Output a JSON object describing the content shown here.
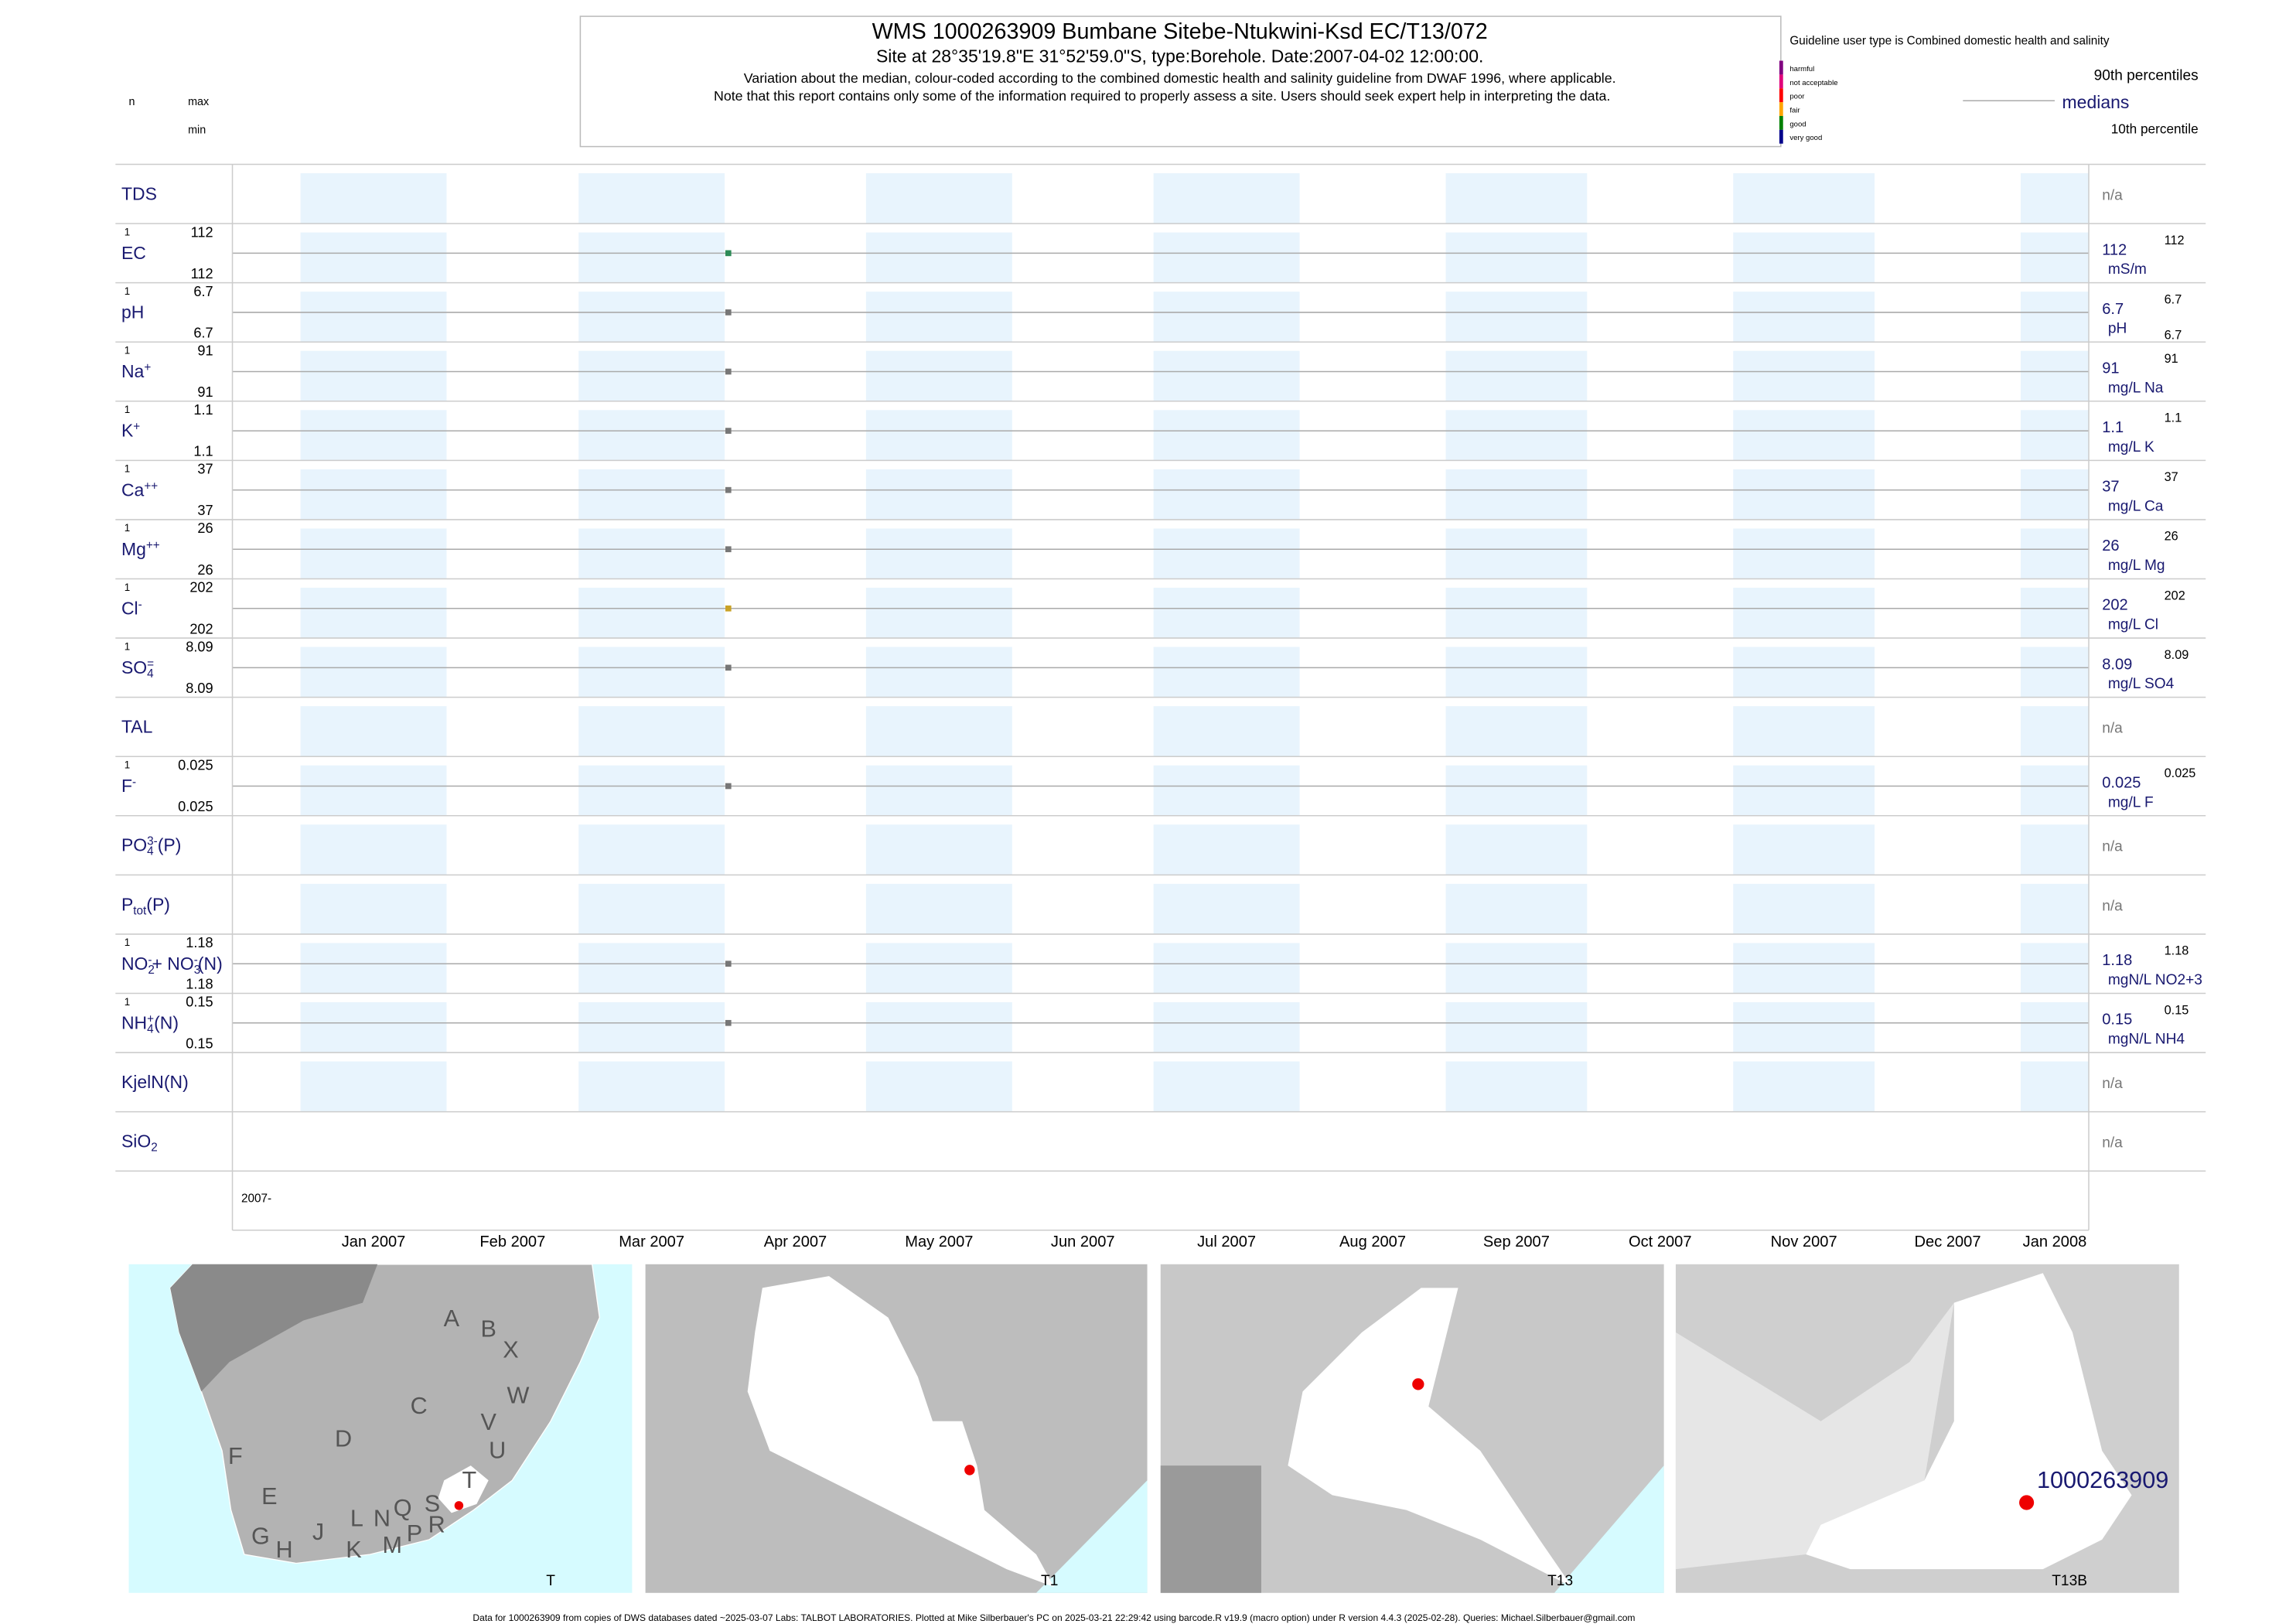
{
  "header": {
    "title": "WMS 1000263909  Bumbane Sitebe-Ntukwini-Ksd EC/T13/072",
    "subtitle": "Site at 28°35'19.8\"E 31°52'59.0\"S, type:Borehole. Date:2007-04-02 12:00:00.",
    "note1": "Variation about the median,  colour-coded according to the combined domestic health and salinity guideline from DWAF 1996, where applicable.",
    "note2": "Note that this report contains only some of the information required to properly assess a site. Users should seek expert help in interpreting the data."
  },
  "key": {
    "n": "n",
    "max": "max",
    "min": "min"
  },
  "guideline": {
    "title": "Guideline user type is Combined domestic health and salinity",
    "classes": [
      {
        "label": "harmful",
        "color": "#800080"
      },
      {
        "label": "not acceptable",
        "color": "#e0007a"
      },
      {
        "label": "poor",
        "color": "#ff0000"
      },
      {
        "label": "fair",
        "color": "#ffa500"
      },
      {
        "label": "good",
        "color": "#008000"
      },
      {
        "label": "very good",
        "color": "#00008b"
      }
    ],
    "p90": "90th percentiles",
    "medians": "medians",
    "p10": "10th percentile"
  },
  "rows": [
    {
      "parts": [
        {
          "text": "TDS"
        }
      ],
      "na": "n/a"
    },
    {
      "parts": [
        {
          "text": "EC"
        }
      ],
      "n": 1,
      "max": 112,
      "min": 112,
      "median": 112,
      "unit": "mS/m",
      "color": "#2e8b57"
    },
    {
      "parts": [
        {
          "text": "pH"
        }
      ],
      "n": 1,
      "max": 6.7,
      "min": 6.7,
      "median": 6.7,
      "unit": "pH",
      "show_min_right": true,
      "color": "#777777"
    },
    {
      "parts": [
        {
          "text": "Na"
        },
        {
          "text": "+",
          "pos": "sup"
        }
      ],
      "n": 1,
      "max": 91,
      "min": 91,
      "median": 91,
      "unit": "mg/L Na",
      "color": "#777777"
    },
    {
      "parts": [
        {
          "text": "K"
        },
        {
          "text": "+",
          "pos": "sup"
        }
      ],
      "n": 1,
      "max": 1.1,
      "min": 1.1,
      "median": 1.1,
      "unit": "mg/L K",
      "color": "#777777"
    },
    {
      "parts": [
        {
          "text": "Ca"
        },
        {
          "text": "++",
          "pos": "sup"
        }
      ],
      "n": 1,
      "max": 37,
      "min": 37,
      "median": 37,
      "unit": "mg/L Ca",
      "color": "#777777"
    },
    {
      "parts": [
        {
          "text": "Mg"
        },
        {
          "text": "++",
          "pos": "sup"
        }
      ],
      "n": 1,
      "max": 26,
      "min": 26,
      "median": 26,
      "unit": "mg/L Mg",
      "color": "#777777"
    },
    {
      "parts": [
        {
          "text": "Cl"
        },
        {
          "text": "-",
          "pos": "sup"
        }
      ],
      "n": 1,
      "max": 202,
      "min": 202,
      "median": 202,
      "unit": "mg/L Cl",
      "color": "#c9a227"
    },
    {
      "parts": [
        {
          "text": "SO"
        },
        {
          "text": "4",
          "pos": "sub"
        },
        {
          "text": "=",
          "pos": "sup"
        }
      ],
      "n": 1,
      "max": 8.09,
      "min": 8.09,
      "median": 8.09,
      "unit": "mg/L SO4",
      "color": "#777777"
    },
    {
      "parts": [
        {
          "text": "TAL"
        }
      ],
      "na": "n/a"
    },
    {
      "parts": [
        {
          "text": "F"
        },
        {
          "text": "-",
          "pos": "sup"
        }
      ],
      "n": 1,
      "max": 0.025,
      "min": 0.025,
      "median": 0.025,
      "unit": "mg/L F",
      "color": "#777777"
    },
    {
      "parts": [
        {
          "text": "PO"
        },
        {
          "text": "4",
          "pos": "sub"
        },
        {
          "text": "3-",
          "pos": "sup"
        },
        {
          "text": "(P)"
        }
      ],
      "na": "n/a"
    },
    {
      "parts": [
        {
          "text": "P"
        },
        {
          "text": "tot",
          "pos": "sub"
        },
        {
          "text": "(P)"
        }
      ],
      "na": "n/a"
    },
    {
      "parts": [
        {
          "text": "NO"
        },
        {
          "text": "2",
          "pos": "sub"
        },
        {
          "text": "-",
          "pos": "sup"
        },
        {
          "text": "+ NO"
        },
        {
          "text": "3",
          "pos": "sub"
        },
        {
          "text": "-",
          "pos": "sup"
        },
        {
          "text": "(N)"
        }
      ],
      "n": 1,
      "max": 1.18,
      "min": 1.18,
      "median": 1.18,
      "unit": "mgN/L NO2+3",
      "color": "#777777"
    },
    {
      "parts": [
        {
          "text": "NH"
        },
        {
          "text": "4",
          "pos": "sub"
        },
        {
          "text": "+",
          "pos": "sup"
        },
        {
          "text": "(N)"
        }
      ],
      "n": 1,
      "max": 0.15,
      "min": 0.15,
      "median": 0.15,
      "unit": "mgN/L NH4",
      "color": "#777777"
    },
    {
      "parts": [
        {
          "text": "KjelN(N)"
        }
      ],
      "na": "n/a"
    },
    {
      "parts": [
        {
          "text": "SiO"
        },
        {
          "text": "2",
          "pos": "sub"
        }
      ],
      "na": "n/a"
    }
  ],
  "x_axis": {
    "start_label": "2007-",
    "months": [
      "Jan 2007",
      "Feb 2007",
      "Mar 2007",
      "Apr 2007",
      "May 2007",
      "Jun 2007",
      "Jul 2007",
      "Aug 2007",
      "Sep 2007",
      "Oct 2007",
      "Nov 2007",
      "Dec 2007",
      "Jan 2008"
    ]
  },
  "maps": [
    {
      "label": "T",
      "regions": [
        "A",
        "B",
        "X",
        "W",
        "C",
        "V",
        "U",
        "D",
        "T",
        "F",
        "E",
        "S",
        "R",
        "Q",
        "N",
        "L",
        "J",
        "G",
        "H",
        "K",
        "M",
        "P"
      ]
    },
    {
      "label": "T1"
    },
    {
      "label": "T13"
    },
    {
      "label": "T13B",
      "site": "1000263909"
    }
  ],
  "footer": "Data for 1000263909 from copies of DWS databases dated ~2025-03-07 Labs: TALBOT LABORATORIES. Plotted at Mike Silberbauer's PC on 2025-03-21 22:29:42 using barcode.R v19.9 (macro option) under R version 4.4.3 (2025-02-28). Queries: Michael.Silberbauer@gmail.com"
}
